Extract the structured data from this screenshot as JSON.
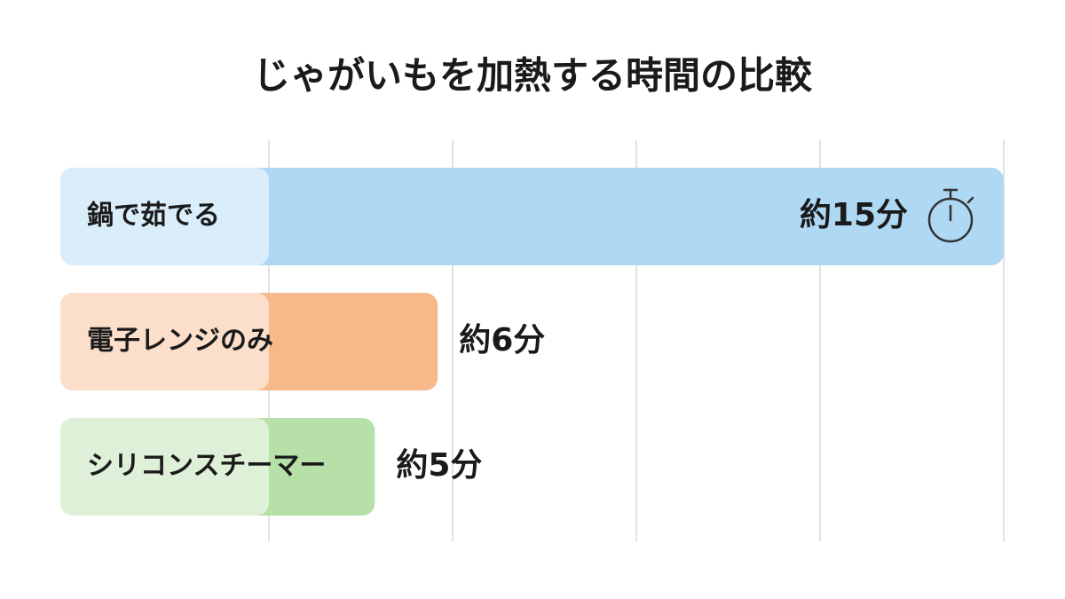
{
  "chart_data": {
    "type": "barh",
    "title": "じゃがいもを加熱する時間の比較",
    "categories": [
      "鍋で茹でる",
      "電子レンジのみ",
      "シリコンスチーマー"
    ],
    "series": [
      {
        "values": [
          15,
          6,
          5
        ],
        "value_labels": [
          "約15分",
          "約6分",
          "約5分"
        ],
        "colors": [
          "#aed8f3",
          "#f8b98a",
          "#b7e0a8"
        ]
      }
    ],
    "xlim": [
      0,
      15
    ]
  }
}
